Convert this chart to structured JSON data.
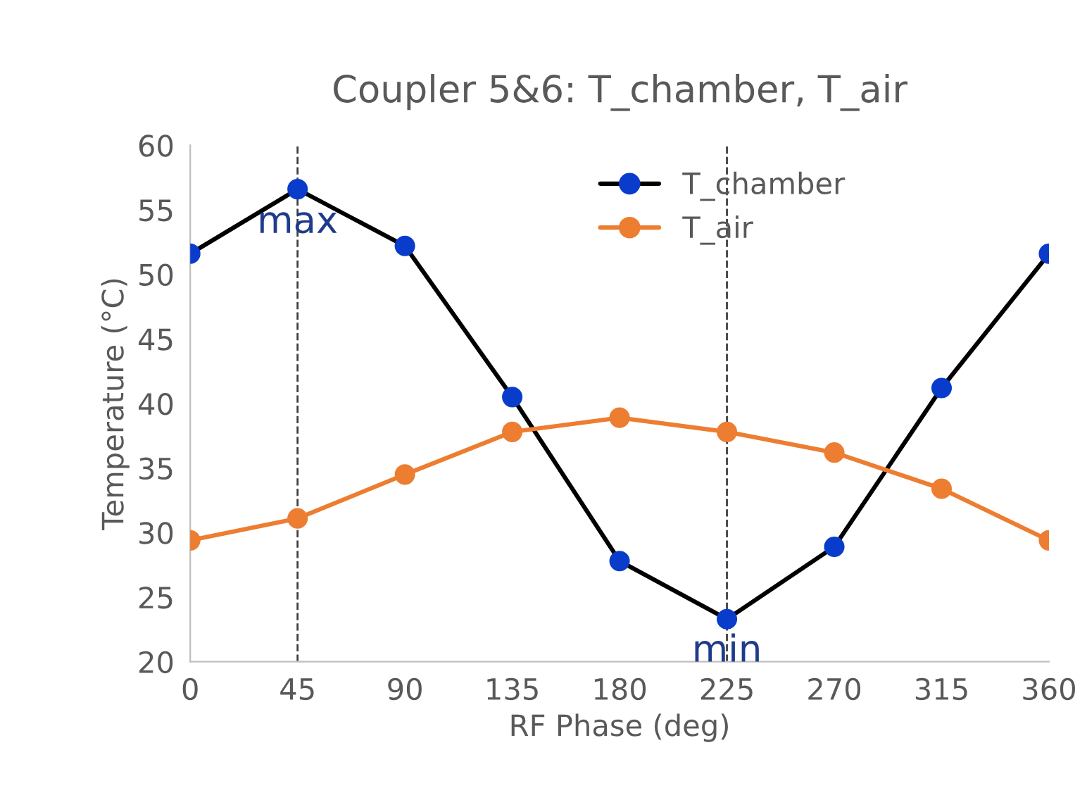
{
  "chart_data": {
    "type": "line",
    "title": "Coupler 5&6: T_chamber, T_air",
    "xlabel": "RF Phase (deg)",
    "ylabel": "Temperature (°C)",
    "x": [
      0,
      45,
      90,
      135,
      180,
      225,
      270,
      315,
      360
    ],
    "series": [
      {
        "name": "T_chamber",
        "color": "#0a3ccc",
        "values": [
          51.6,
          56.6,
          52.2,
          40.5,
          27.8,
          23.3,
          28.9,
          41.2,
          51.6
        ]
      },
      {
        "name": "T_air",
        "color": "#ed7d31",
        "values": [
          29.4,
          31.1,
          34.5,
          37.8,
          38.9,
          37.8,
          36.2,
          33.4,
          29.4
        ]
      }
    ],
    "xlim": [
      0,
      360
    ],
    "xticks": [
      0,
      45,
      90,
      135,
      180,
      225,
      270,
      315,
      360
    ],
    "ylim": [
      20,
      60
    ],
    "yticks": [
      20,
      25,
      30,
      35,
      40,
      45,
      50,
      55,
      60
    ],
    "ref_lines": [
      {
        "axis": "x",
        "value": 45,
        "label": null,
        "line_style": "dashed",
        "color": "#404040"
      },
      {
        "axis": "x",
        "value": 225,
        "label": null,
        "line_style": "dashed",
        "color": "#404040"
      }
    ],
    "annotations": [
      {
        "text": "max",
        "x": 45,
        "y": 54
      },
      {
        "text": "min",
        "x": 225,
        "y": 20.8
      }
    ],
    "marker": "circle",
    "line_style": "solid",
    "legend": "top",
    "grid": false
  }
}
